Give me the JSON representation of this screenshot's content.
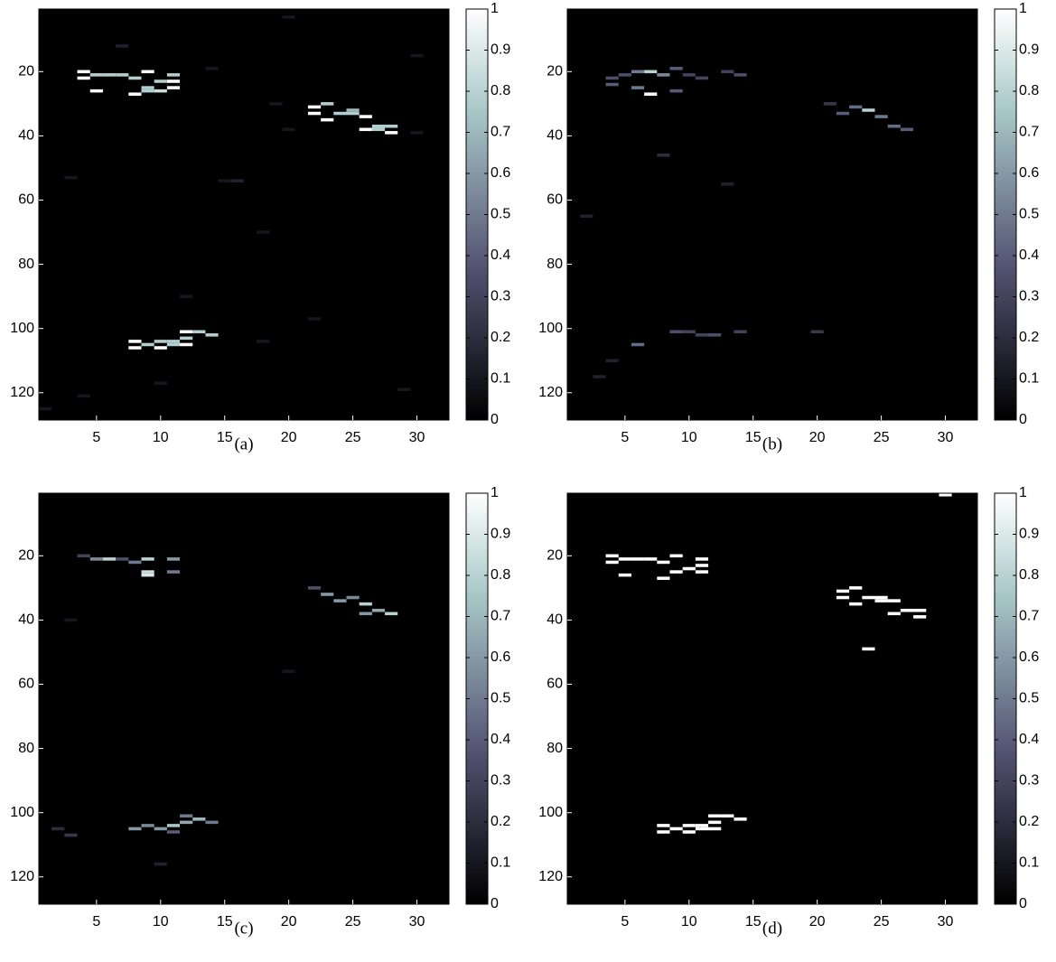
{
  "chart_data": [
    {
      "type": "heatmap",
      "caption": "(a)",
      "colormap": "bone",
      "xlim": [
        0.5,
        32.5
      ],
      "ylim": [
        0.5,
        128.5
      ],
      "xticks": [
        5,
        10,
        15,
        20,
        25,
        30
      ],
      "yticks": [
        20,
        40,
        60,
        80,
        100,
        120
      ],
      "clim": [
        0,
        1
      ],
      "cticks": [
        0,
        0.1,
        0.2,
        0.3,
        0.4,
        0.5,
        0.6,
        0.7,
        0.8,
        0.9,
        1
      ],
      "cells": [
        [
          4,
          20,
          1
        ],
        [
          4,
          22,
          1
        ],
        [
          5,
          21,
          0.78
        ],
        [
          6,
          21,
          0.78
        ],
        [
          7,
          21,
          0.78
        ],
        [
          8,
          22,
          0.78
        ],
        [
          9,
          20,
          1
        ],
        [
          9,
          25,
          0.78
        ],
        [
          9,
          26,
          0.78
        ],
        [
          11,
          21,
          0.78
        ],
        [
          11,
          23,
          1
        ],
        [
          11,
          25,
          1
        ],
        [
          5,
          26,
          1
        ],
        [
          8,
          27,
          1
        ],
        [
          10,
          23,
          0.78
        ],
        [
          10,
          26,
          0.85
        ],
        [
          22,
          31,
          1
        ],
        [
          22,
          33,
          1
        ],
        [
          23,
          30,
          0.78
        ],
        [
          24,
          33,
          0.78
        ],
        [
          25,
          33,
          0.78
        ],
        [
          25,
          32,
          0.7
        ],
        [
          26,
          34,
          1
        ],
        [
          23,
          35,
          1
        ],
        [
          26,
          38,
          1
        ],
        [
          27,
          37,
          0.78
        ],
        [
          28,
          37,
          0.78
        ],
        [
          28,
          39,
          1
        ],
        [
          27,
          38,
          0.78
        ],
        [
          8,
          104,
          1
        ],
        [
          8,
          106,
          1
        ],
        [
          9,
          105,
          0.78
        ],
        [
          10,
          104,
          0.78
        ],
        [
          11,
          105,
          0.78
        ],
        [
          11,
          104,
          0.78
        ],
        [
          12,
          101,
          1
        ],
        [
          12,
          103,
          0.78
        ],
        [
          13,
          101,
          0.78
        ],
        [
          14,
          102,
          0.78
        ],
        [
          12,
          105,
          1
        ],
        [
          10,
          106,
          1
        ],
        [
          14,
          19,
          0.1
        ],
        [
          7,
          12,
          0.15
        ],
        [
          20,
          3,
          0.1
        ],
        [
          30,
          15,
          0.1
        ],
        [
          19,
          30,
          0.1
        ],
        [
          20,
          38,
          0.1
        ],
        [
          16,
          54,
          0.15
        ],
        [
          15,
          54,
          0.1
        ],
        [
          18,
          70,
          0.1
        ],
        [
          3,
          53,
          0.1
        ],
        [
          1,
          125,
          0.1
        ],
        [
          12,
          90,
          0.1
        ],
        [
          18,
          104,
          0.1
        ],
        [
          22,
          97,
          0.1
        ],
        [
          30,
          39,
          0.1
        ],
        [
          4,
          121,
          0.1
        ],
        [
          29,
          119,
          0.1
        ],
        [
          10,
          117,
          0.1
        ]
      ]
    },
    {
      "type": "heatmap",
      "caption": "(b)",
      "colormap": "bone",
      "xlim": [
        0.5,
        32.5
      ],
      "ylim": [
        0.5,
        128.5
      ],
      "xticks": [
        5,
        10,
        15,
        20,
        25,
        30
      ],
      "yticks": [
        20,
        40,
        60,
        80,
        100,
        120
      ],
      "clim": [
        0,
        1
      ],
      "cticks": [
        0,
        0.1,
        0.2,
        0.3,
        0.4,
        0.5,
        0.6,
        0.7,
        0.8,
        0.9,
        1
      ],
      "cells": [
        [
          5,
          21,
          0.35
        ],
        [
          6,
          20,
          0.5
        ],
        [
          7,
          20,
          0.8
        ],
        [
          8,
          21,
          0.55
        ],
        [
          7,
          27,
          1
        ],
        [
          6,
          25,
          0.5
        ],
        [
          9,
          19,
          0.4
        ],
        [
          9,
          26,
          0.4
        ],
        [
          10,
          21,
          0.3
        ],
        [
          11,
          22,
          0.3
        ],
        [
          13,
          20,
          0.3
        ],
        [
          14,
          21,
          0.35
        ],
        [
          4,
          22,
          0.35
        ],
        [
          4,
          24,
          0.4
        ],
        [
          22,
          33,
          0.4
        ],
        [
          23,
          31,
          0.45
        ],
        [
          24,
          32,
          0.8
        ],
        [
          25,
          34,
          0.5
        ],
        [
          26,
          37,
          0.45
        ],
        [
          27,
          38,
          0.4
        ],
        [
          21,
          30,
          0.25
        ],
        [
          9,
          101,
          0.35
        ],
        [
          10,
          101,
          0.3
        ],
        [
          11,
          102,
          0.3
        ],
        [
          12,
          102,
          0.35
        ],
        [
          14,
          101,
          0.3
        ],
        [
          6,
          105,
          0.45
        ],
        [
          20,
          101,
          0.25
        ],
        [
          4,
          110,
          0.15
        ],
        [
          3,
          115,
          0.15
        ],
        [
          8,
          46,
          0.2
        ],
        [
          13,
          55,
          0.15
        ],
        [
          2,
          65,
          0.15
        ]
      ]
    },
    {
      "type": "heatmap",
      "caption": "(c)",
      "colormap": "bone",
      "xlim": [
        0.5,
        32.5
      ],
      "ylim": [
        0.5,
        128.5
      ],
      "xticks": [
        5,
        10,
        15,
        20,
        25,
        30
      ],
      "yticks": [
        20,
        40,
        60,
        80,
        100,
        120
      ],
      "clim": [
        0,
        1
      ],
      "cticks": [
        0,
        0.1,
        0.2,
        0.3,
        0.4,
        0.5,
        0.6,
        0.7,
        0.8,
        0.9,
        1
      ],
      "cells": [
        [
          5,
          21,
          0.55
        ],
        [
          6,
          21,
          0.8
        ],
        [
          7,
          21,
          0.35
        ],
        [
          8,
          22,
          0.5
        ],
        [
          9,
          21,
          0.8
        ],
        [
          9,
          25,
          0.85
        ],
        [
          9,
          26,
          0.9
        ],
        [
          11,
          21,
          0.6
        ],
        [
          4,
          20,
          0.3
        ],
        [
          11,
          25,
          0.5
        ],
        [
          23,
          32,
          0.6
        ],
        [
          24,
          34,
          0.6
        ],
        [
          25,
          33,
          0.55
        ],
        [
          26,
          35,
          0.8
        ],
        [
          26,
          38,
          0.6
        ],
        [
          27,
          37,
          0.65
        ],
        [
          28,
          38,
          0.8
        ],
        [
          22,
          30,
          0.35
        ],
        [
          8,
          105,
          0.6
        ],
        [
          9,
          104,
          0.55
        ],
        [
          10,
          105,
          0.6
        ],
        [
          11,
          104,
          0.75
        ],
        [
          12,
          103,
          0.65
        ],
        [
          13,
          102,
          0.7
        ],
        [
          14,
          103,
          0.5
        ],
        [
          12,
          101,
          0.5
        ],
        [
          11,
          106,
          0.4
        ],
        [
          2,
          105,
          0.2
        ],
        [
          3,
          107,
          0.25
        ],
        [
          10,
          116,
          0.15
        ],
        [
          20,
          56,
          0.1
        ],
        [
          3,
          40,
          0.1
        ]
      ]
    },
    {
      "type": "heatmap",
      "caption": "(d)",
      "colormap": "bone",
      "xlim": [
        0.5,
        32.5
      ],
      "ylim": [
        0.5,
        128.5
      ],
      "xticks": [
        5,
        10,
        15,
        20,
        25,
        30
      ],
      "yticks": [
        20,
        40,
        60,
        80,
        100,
        120
      ],
      "clim": [
        0,
        1
      ],
      "cticks": [
        0,
        0.1,
        0.2,
        0.3,
        0.4,
        0.5,
        0.6,
        0.7,
        0.8,
        0.9,
        1
      ],
      "cells": [
        [
          4,
          20,
          1
        ],
        [
          4,
          22,
          1
        ],
        [
          5,
          21,
          1
        ],
        [
          6,
          21,
          1
        ],
        [
          7,
          21,
          1
        ],
        [
          8,
          22,
          1
        ],
        [
          9,
          20,
          1
        ],
        [
          9,
          25,
          1
        ],
        [
          8,
          27,
          1
        ],
        [
          10,
          24,
          1
        ],
        [
          11,
          21,
          1
        ],
        [
          11,
          23,
          1
        ],
        [
          11,
          25,
          1
        ],
        [
          5,
          26,
          1
        ],
        [
          22,
          31,
          1
        ],
        [
          22,
          33,
          1
        ],
        [
          23,
          30,
          1
        ],
        [
          24,
          33,
          1
        ],
        [
          25,
          33,
          1
        ],
        [
          25,
          34,
          1
        ],
        [
          26,
          34,
          1
        ],
        [
          23,
          35,
          1
        ],
        [
          26,
          38,
          1
        ],
        [
          27,
          37,
          1
        ],
        [
          28,
          37,
          1
        ],
        [
          28,
          39,
          1
        ],
        [
          24,
          49,
          1
        ],
        [
          30,
          1,
          1
        ],
        [
          8,
          104,
          1
        ],
        [
          8,
          106,
          1
        ],
        [
          9,
          105,
          1
        ],
        [
          10,
          104,
          1
        ],
        [
          11,
          105,
          1
        ],
        [
          11,
          104,
          1
        ],
        [
          12,
          101,
          1
        ],
        [
          12,
          103,
          1
        ],
        [
          13,
          101,
          1
        ],
        [
          14,
          102,
          1
        ],
        [
          12,
          105,
          1
        ],
        [
          10,
          106,
          1
        ]
      ]
    }
  ]
}
